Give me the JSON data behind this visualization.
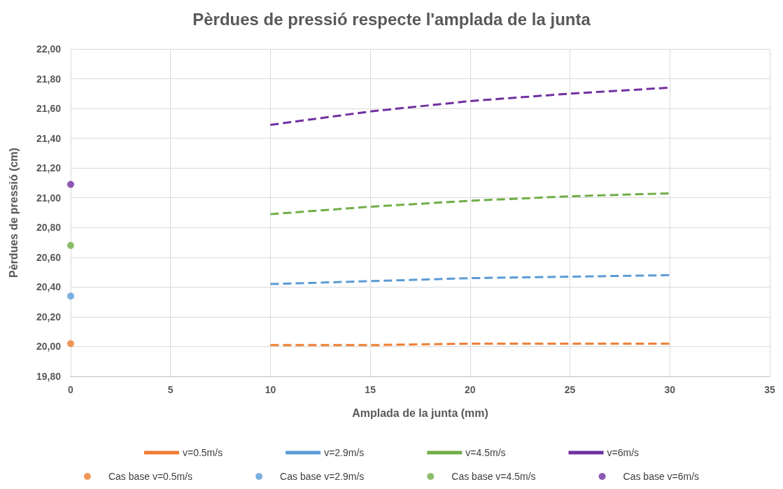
{
  "chart_data": {
    "type": "line",
    "title": "Pèrdues de pressió respecte l'amplada de la junta",
    "xlabel": "Amplada de la junta (mm)",
    "ylabel": "Pèrdues de pressió (cm)",
    "xlim": [
      0,
      35
    ],
    "xticks": [
      0,
      5,
      10,
      15,
      20,
      25,
      30,
      35
    ],
    "ylim": [
      19.8,
      22
    ],
    "yticks": [
      {
        "value": 19.8,
        "label": "19,80"
      },
      {
        "value": 20,
        "label": "20,00"
      },
      {
        "value": 20.2,
        "label": "20,20"
      },
      {
        "value": 20.4,
        "label": "20,40"
      },
      {
        "value": 20.6,
        "label": "20,60"
      },
      {
        "value": 20.8,
        "label": "20,80"
      },
      {
        "value": 21,
        "label": "21,00"
      },
      {
        "value": 21.2,
        "label": "21,20"
      },
      {
        "value": 21.4,
        "label": "21,40"
      },
      {
        "value": 21.6,
        "label": "21,60"
      },
      {
        "value": 21.8,
        "label": "21,80"
      },
      {
        "value": 22,
        "label": "22,00"
      }
    ],
    "grid": true,
    "legend": "bottom",
    "line_style": "dashed",
    "series": [
      {
        "name": "v=0.5m/s",
        "type": "line",
        "marker": "none",
        "color": "#ed7d31",
        "x": [
          10,
          15,
          20,
          25,
          30
        ],
        "values": [
          20.01,
          20.01,
          20.02,
          20.02,
          20.02
        ]
      },
      {
        "name": "v=2.9m/s",
        "type": "line",
        "marker": "none",
        "color": "#5b9bd5",
        "x": [
          10,
          15,
          20,
          25,
          30
        ],
        "values": [
          20.42,
          20.44,
          20.46,
          20.47,
          20.48
        ]
      },
      {
        "name": "v=4.5m/s",
        "type": "line",
        "marker": "none",
        "color": "#70ad47",
        "x": [
          10,
          15,
          20,
          25,
          30
        ],
        "values": [
          20.89,
          20.94,
          20.98,
          21.01,
          21.03
        ]
      },
      {
        "name": "v=6m/s",
        "type": "line",
        "marker": "none",
        "color": "#7030a0",
        "x": [
          10,
          15,
          20,
          25,
          30
        ],
        "values": [
          21.49,
          21.58,
          21.65,
          21.7,
          21.74
        ]
      },
      {
        "name": "Cas base v=0.5m/s",
        "type": "scatter",
        "marker": "circle",
        "color": "#ed7d31",
        "x": [
          0
        ],
        "values": [
          20.02
        ]
      },
      {
        "name": "Cas base v=2.9m/s",
        "type": "scatter",
        "marker": "circle",
        "color": "#5b9bd5",
        "x": [
          0
        ],
        "values": [
          20.34
        ]
      },
      {
        "name": "Cas base v=4.5m/s",
        "type": "scatter",
        "marker": "circle",
        "color": "#70ad47",
        "x": [
          0
        ],
        "values": [
          20.68
        ]
      },
      {
        "name": "Cas base v=6m/s",
        "type": "scatter",
        "marker": "circle",
        "color": "#7030a0",
        "x": [
          0
        ],
        "values": [
          21.09
        ]
      }
    ]
  }
}
